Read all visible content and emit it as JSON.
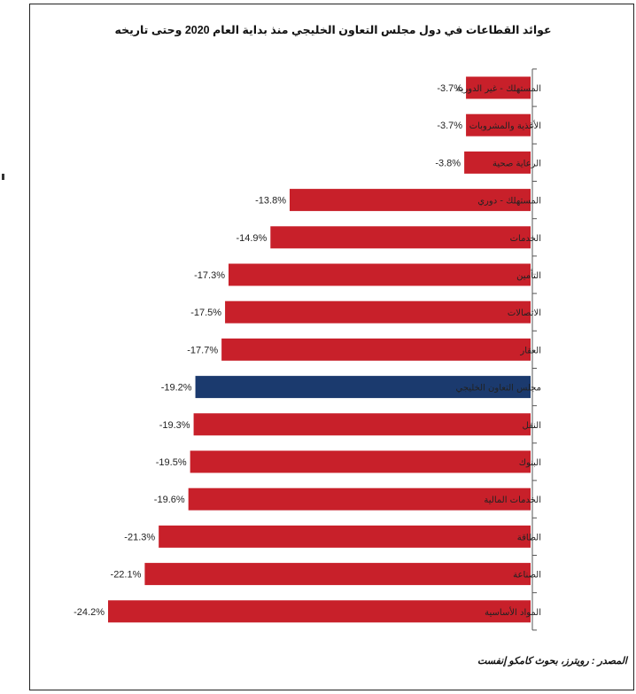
{
  "title": "عوائد القطاعات في دول مجلس التعاون الخليجي منذ بداية العام 2020 وحتى تاريخه",
  "source": "المصدر : رويترز، بحوث كامكو إنفست",
  "colors": {
    "sector_bar": "#c8202a",
    "index_bar": "#1b3a6e",
    "text": "#222222",
    "frame": "#222222"
  },
  "chart_data": {
    "type": "bar",
    "orientation": "horizontal",
    "title": "عوائد القطاعات في دول مجلس التعاون الخليجي منذ بداية العام 2020 وحتى تاريخه",
    "unit": "%",
    "xlim": [
      -24.2,
      0
    ],
    "grid": false,
    "legend": "none",
    "highlight_index": 8,
    "categories": [
      "المستهلك - غير الدورية",
      "الأغذية والمشروبات",
      "الرعاية صحية",
      "المستهلك - دوري",
      "الخدمات",
      "التأمين",
      "الاتصالات",
      "العقار",
      "مجلس التعاون الخليجي",
      "النقل",
      "البنوك",
      "الخدمات المالية",
      "الطاقة",
      "الصناعة",
      "المواد الأساسية"
    ],
    "values": [
      -3.7,
      -3.7,
      -3.8,
      -13.8,
      -14.9,
      -17.3,
      -17.5,
      -17.7,
      -19.2,
      -19.3,
      -19.5,
      -19.6,
      -21.3,
      -22.1,
      -24.2
    ],
    "data_labels": [
      "-3.7%",
      "-3.7%",
      "-3.8%",
      "-13.8%",
      "-14.9%",
      "-17.3%",
      "-17.5%",
      "-17.7%",
      "-19.2%",
      "-19.3%",
      "-19.5%",
      "-19.6%",
      "-21.3%",
      "-22.1%",
      "-24.2%"
    ]
  }
}
